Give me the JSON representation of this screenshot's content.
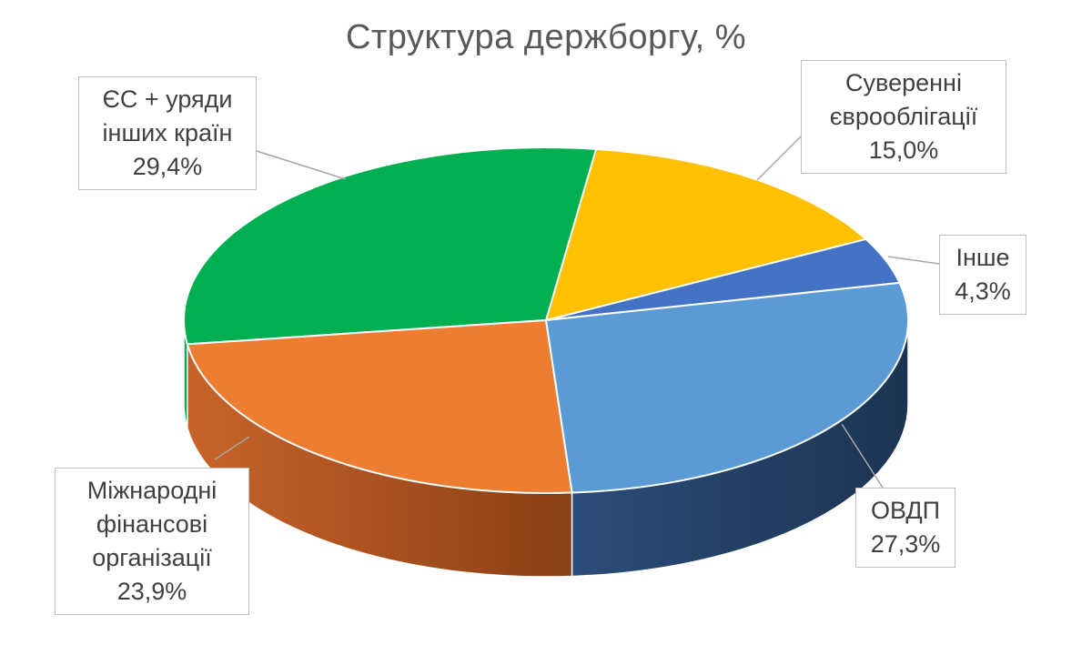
{
  "chart_data": {
    "type": "pie",
    "title": "Структура держборгу, %",
    "slices": [
      {
        "name": "Інше",
        "value": 4.3,
        "label": "4,3%",
        "color": "#4472c4"
      },
      {
        "name": "Суверенні єврооблігації",
        "value": 15.0,
        "label": "15,0%",
        "color": "#ffc000"
      },
      {
        "name": "ЄС + уряди інших країн",
        "value": 29.4,
        "label": "29,4%",
        "color": "#00b050"
      },
      {
        "name": "Міжнародні фінансові організації",
        "value": 23.9,
        "label": "23,9%",
        "color": "#ed7d31"
      },
      {
        "name": "ОВДП",
        "value": 27.3,
        "label": "27,3%",
        "color": "#5b9bd5"
      }
    ],
    "label_lines": {
      "Інше": [
        "Інше"
      ],
      "Суверенні єврооблігації": [
        "Суверенні",
        "єврооблігації"
      ],
      "ЄС + уряди інших країн": [
        "ЄС + уряди",
        "інших країн"
      ],
      "Міжнародні фінансові організації": [
        "Міжнародні",
        "фінансові",
        "організації"
      ],
      "ОВДП": [
        "ОВДП"
      ]
    },
    "style": "3d-pie",
    "side_colors": {
      "Міжнародні фінансові організації": "#b4561e",
      "ОВДП": "#2a4a72"
    }
  }
}
